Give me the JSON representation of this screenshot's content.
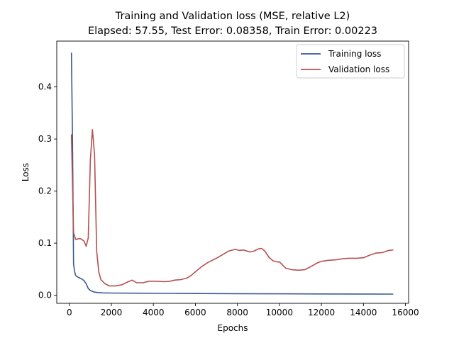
{
  "chart_data": {
    "type": "line",
    "title": "Training and Validation loss (MSE, relative L2)",
    "subtitle": "Elapsed: 57.55, Test Error: 0.08358, Train Error: 0.00223",
    "xlabel": "Epochs",
    "ylabel": "Loss",
    "xlim": [
      -600,
      16150
    ],
    "ylim": [
      -0.0155,
      0.488
    ],
    "xticks": [
      0,
      2000,
      4000,
      6000,
      8000,
      10000,
      12000,
      14000,
      16000
    ],
    "yticks": [
      0.0,
      0.1,
      0.2,
      0.3,
      0.4
    ],
    "xtick_labels": [
      "0",
      "2000",
      "4000",
      "6000",
      "8000",
      "10000",
      "12000",
      "14000",
      "16000"
    ],
    "ytick_labels": [
      "0.0",
      "0.1",
      "0.2",
      "0.3",
      "0.4"
    ],
    "grid": false,
    "legend_position": "upper-right",
    "series": [
      {
        "name": "Training loss",
        "color": "#3a5a92",
        "x": [
          100,
          150,
          200,
          250,
          300,
          400,
          500,
          600,
          700,
          800,
          900,
          1000,
          1200,
          1400,
          1600,
          2000,
          3000,
          5000,
          8000,
          10000,
          12000,
          14000,
          15400
        ],
        "y": [
          0.465,
          0.3,
          0.06,
          0.045,
          0.038,
          0.035,
          0.033,
          0.031,
          0.028,
          0.022,
          0.013,
          0.009,
          0.006,
          0.005,
          0.0045,
          0.0042,
          0.004,
          0.0035,
          0.003,
          0.0027,
          0.0025,
          0.0023,
          0.0022
        ]
      },
      {
        "name": "Validation loss",
        "color": "#b5504f",
        "x": [
          100,
          200,
          300,
          400,
          500,
          600,
          700,
          800,
          900,
          1000,
          1100,
          1200,
          1300,
          1400,
          1500,
          1700,
          1900,
          2200,
          2500,
          2800,
          3000,
          3200,
          3500,
          3800,
          4200,
          4500,
          4800,
          5000,
          5300,
          5600,
          5800,
          6000,
          6300,
          6600,
          7000,
          7300,
          7600,
          7900,
          8100,
          8300,
          8600,
          8800,
          9000,
          9150,
          9300,
          9500,
          9700,
          9900,
          10000,
          10100,
          10300,
          10600,
          10900,
          11200,
          11500,
          11800,
          12000,
          12300,
          12700,
          13000,
          13300,
          13700,
          14000,
          14300,
          14600,
          14900,
          15200,
          15400
        ],
        "y": [
          0.308,
          0.12,
          0.107,
          0.108,
          0.109,
          0.107,
          0.104,
          0.094,
          0.11,
          0.26,
          0.318,
          0.27,
          0.085,
          0.045,
          0.03,
          0.022,
          0.018,
          0.018,
          0.02,
          0.026,
          0.029,
          0.024,
          0.024,
          0.027,
          0.027,
          0.026,
          0.027,
          0.029,
          0.03,
          0.033,
          0.038,
          0.045,
          0.055,
          0.063,
          0.071,
          0.078,
          0.085,
          0.088,
          0.086,
          0.087,
          0.083,
          0.085,
          0.089,
          0.09,
          0.085,
          0.073,
          0.066,
          0.064,
          0.064,
          0.06,
          0.052,
          0.049,
          0.048,
          0.049,
          0.055,
          0.062,
          0.065,
          0.067,
          0.068,
          0.07,
          0.071,
          0.071,
          0.072,
          0.077,
          0.081,
          0.082,
          0.086,
          0.087
        ]
      }
    ]
  }
}
